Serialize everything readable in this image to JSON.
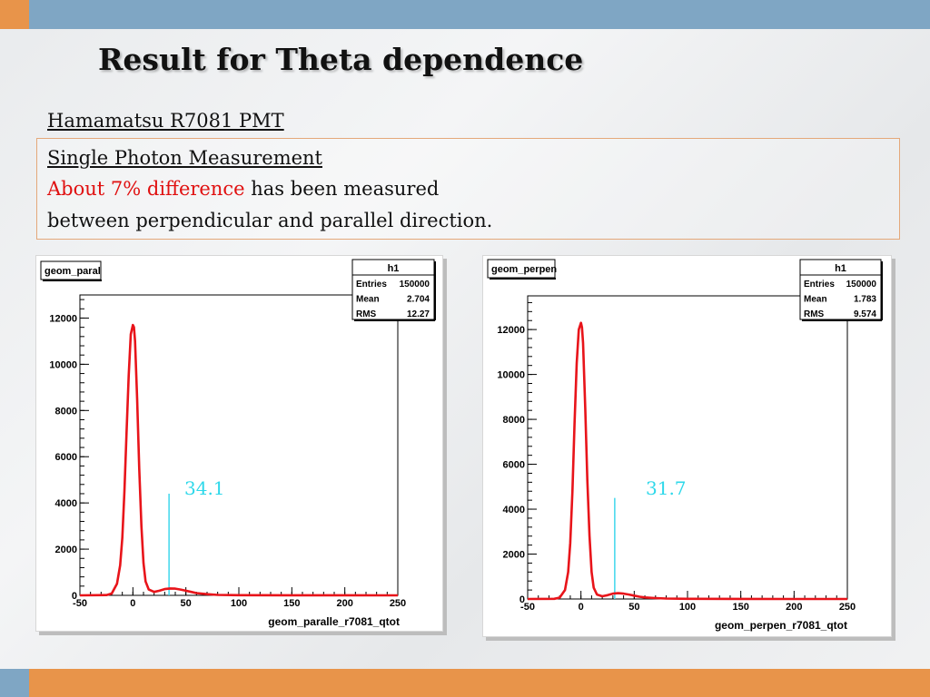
{
  "slide": {
    "title": "Result for Theta dependence",
    "subtitle": "Hamamatsu R7081 PMT",
    "box": {
      "heading": "Single Photon Measurement",
      "highlight": "About 7% difference",
      "rest_line1": " has been measured",
      "line2": "between perpendicular and parallel direction."
    }
  },
  "colors": {
    "curve": "#e8141a",
    "marker": "#3fd7ec",
    "highlight": "#e01010",
    "top_bar": "#7fa6c4",
    "accent": "#e8944a"
  },
  "chart_data": [
    {
      "type": "line",
      "title": "geom_paral",
      "xlabel": "geom_paralle_r7081_qtot",
      "ylabel": "",
      "xlim": [
        -50,
        250
      ],
      "ylim": [
        0,
        13000
      ],
      "xticks": [
        -50,
        0,
        50,
        100,
        150,
        200,
        250
      ],
      "yticks": [
        0,
        2000,
        4000,
        6000,
        8000,
        10000,
        12000
      ],
      "stats": {
        "name": "h1",
        "rows": [
          {
            "label": "Entries",
            "value": "150000"
          },
          {
            "label": "Mean",
            "value": "2.704"
          },
          {
            "label": "RMS",
            "value": "12.27"
          }
        ]
      },
      "marker": {
        "x": 34.1,
        "label": "34.1",
        "height": 4400
      },
      "series": [
        {
          "x": [
            -50,
            -25,
            -20,
            -15,
            -12,
            -10,
            -8,
            -6,
            -4,
            -2,
            0,
            1,
            2,
            4,
            6,
            8,
            10,
            12,
            15,
            20,
            25,
            30,
            35,
            40,
            45,
            50,
            55,
            60,
            70,
            80,
            100,
            150,
            200,
            250
          ],
          "y": [
            0,
            10,
            80,
            500,
            1300,
            2500,
            4500,
            7000,
            9500,
            11300,
            11700,
            11600,
            11000,
            8500,
            5500,
            3000,
            1400,
            600,
            250,
            150,
            200,
            270,
            300,
            290,
            250,
            200,
            150,
            100,
            50,
            20,
            8,
            3,
            2,
            0
          ]
        }
      ]
    },
    {
      "type": "line",
      "title": "geom_perpen",
      "xlabel": "geom_perpen_r7081_qtot",
      "ylabel": "",
      "xlim": [
        -50,
        250
      ],
      "ylim": [
        0,
        13500
      ],
      "xticks": [
        -50,
        0,
        50,
        100,
        150,
        200,
        250
      ],
      "yticks": [
        0,
        2000,
        4000,
        6000,
        8000,
        10000,
        12000
      ],
      "stats": {
        "name": "h1",
        "rows": [
          {
            "label": "Entries",
            "value": "150000"
          },
          {
            "label": "Mean",
            "value": "1.783"
          },
          {
            "label": "RMS",
            "value": "9.574"
          }
        ]
      },
      "marker": {
        "x": 31.7,
        "label": "31.7",
        "height": 4500
      },
      "series": [
        {
          "x": [
            -50,
            -25,
            -20,
            -15,
            -12,
            -10,
            -8,
            -6,
            -4,
            -2,
            0,
            1,
            2,
            4,
            6,
            8,
            10,
            12,
            15,
            20,
            25,
            30,
            35,
            40,
            45,
            50,
            55,
            60,
            70,
            80,
            100,
            150,
            200,
            250
          ],
          "y": [
            0,
            10,
            60,
            400,
            1200,
            2500,
            4800,
            7800,
            10500,
            12000,
            12300,
            12100,
            11400,
            8500,
            5300,
            2800,
            1200,
            500,
            200,
            120,
            170,
            240,
            260,
            240,
            200,
            150,
            100,
            70,
            40,
            20,
            8,
            3,
            2,
            0
          ]
        }
      ]
    }
  ]
}
